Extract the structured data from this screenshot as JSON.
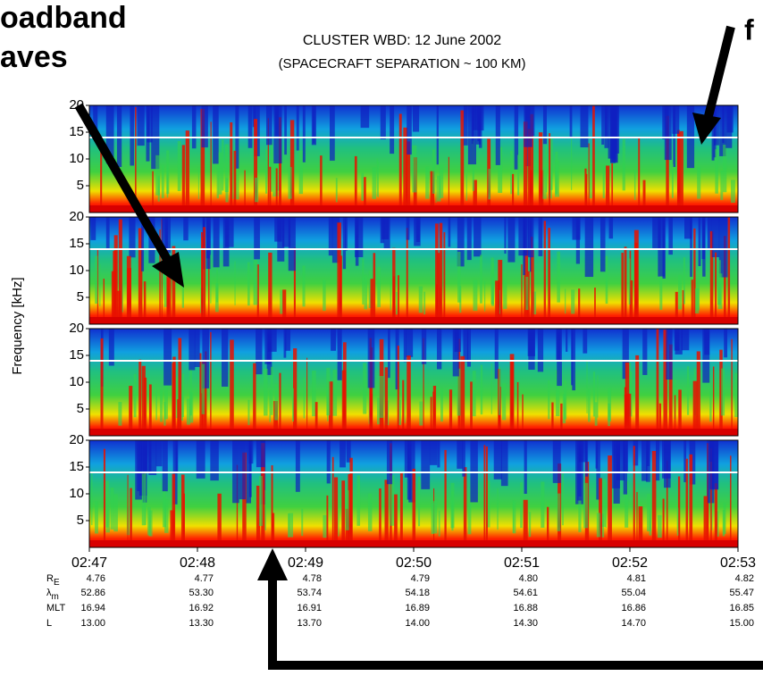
{
  "chart_data": {
    "type": "spectrogram",
    "corner_text_left": [
      "oadband",
      "aves"
    ],
    "corner_text_right": "f",
    "title": "CLUSTER  WBD:  12 June 2002",
    "subtitle": "(SPACECRAFT SEPARATION ~ 100 KM)",
    "ylabel": "Frequency [kHz]",
    "panels": 4,
    "ylim": [
      0,
      20
    ],
    "yticks": [
      5,
      10,
      15,
      20
    ],
    "xticks": [
      "02:47",
      "02:48",
      "02:49",
      "02:50",
      "02:51",
      "02:52",
      "02:53"
    ],
    "ephemeris": [
      {
        "label": "R",
        "sub": "E",
        "values": [
          "4.76",
          "4.77",
          "4.78",
          "4.79",
          "4.80",
          "4.81",
          "4.82"
        ]
      },
      {
        "label": "λ",
        "sub": "m",
        "values": [
          "52.86",
          "53.30",
          "53.74",
          "54.18",
          "54.61",
          "55.04",
          "55.47"
        ]
      },
      {
        "label": "MLT",
        "sub": null,
        "values": [
          "16.94",
          "16.92",
          "16.91",
          "16.89",
          "16.88",
          "16.86",
          "16.85"
        ]
      },
      {
        "label": "L",
        "sub": null,
        "values": [
          "13.00",
          "13.30",
          "13.70",
          "14.00",
          "14.30",
          "14.70",
          "15.00"
        ]
      }
    ]
  }
}
